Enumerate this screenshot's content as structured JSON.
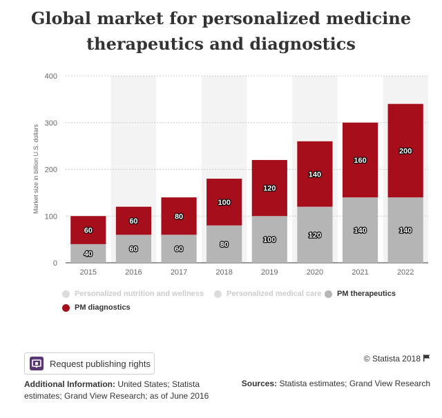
{
  "title_line1": "Global market for personalized medicine",
  "title_line2": "therapeutics and diagnostics",
  "chart_data": {
    "type": "bar",
    "stacked": true,
    "categories": [
      "2015",
      "2016",
      "2017",
      "2018",
      "2019",
      "2020",
      "2021",
      "2022"
    ],
    "series": [
      {
        "name": "PM therapeutics",
        "color": "#b5b5b5",
        "values": [
          40,
          60,
          60,
          80,
          100,
          120,
          140,
          140
        ]
      },
      {
        "name": "PM diagnostics",
        "color": "#a70e1b",
        "values": [
          60,
          60,
          80,
          100,
          120,
          140,
          160,
          200
        ]
      }
    ],
    "ylabel": "Market size in billion U.S. dollars",
    "xlabel": "",
    "ylim": [
      0,
      400
    ],
    "yticks": [
      "0",
      "100",
      "200",
      "300",
      "400"
    ],
    "grid": true
  },
  "legend": [
    {
      "label": "Personalized nutrition and wellness",
      "color": "#dcdcdc",
      "active": false
    },
    {
      "label": "Personalized medical care",
      "color": "#dcdcdc",
      "active": false
    },
    {
      "label": "PM therapeutics",
      "color": "#b5b5b5",
      "active": true
    },
    {
      "label": "PM diagnostics",
      "color": "#a70e1b",
      "active": true
    }
  ],
  "footer": {
    "request_button": "Request publishing rights",
    "copyright": "© Statista 2018",
    "info_label": "Additional Information:",
    "info_text": " United States; Statista estimates; Grand View Research; as of June 2016",
    "sources_label": "Sources:",
    "sources_text": " Statista estimates; Grand View Research"
  }
}
